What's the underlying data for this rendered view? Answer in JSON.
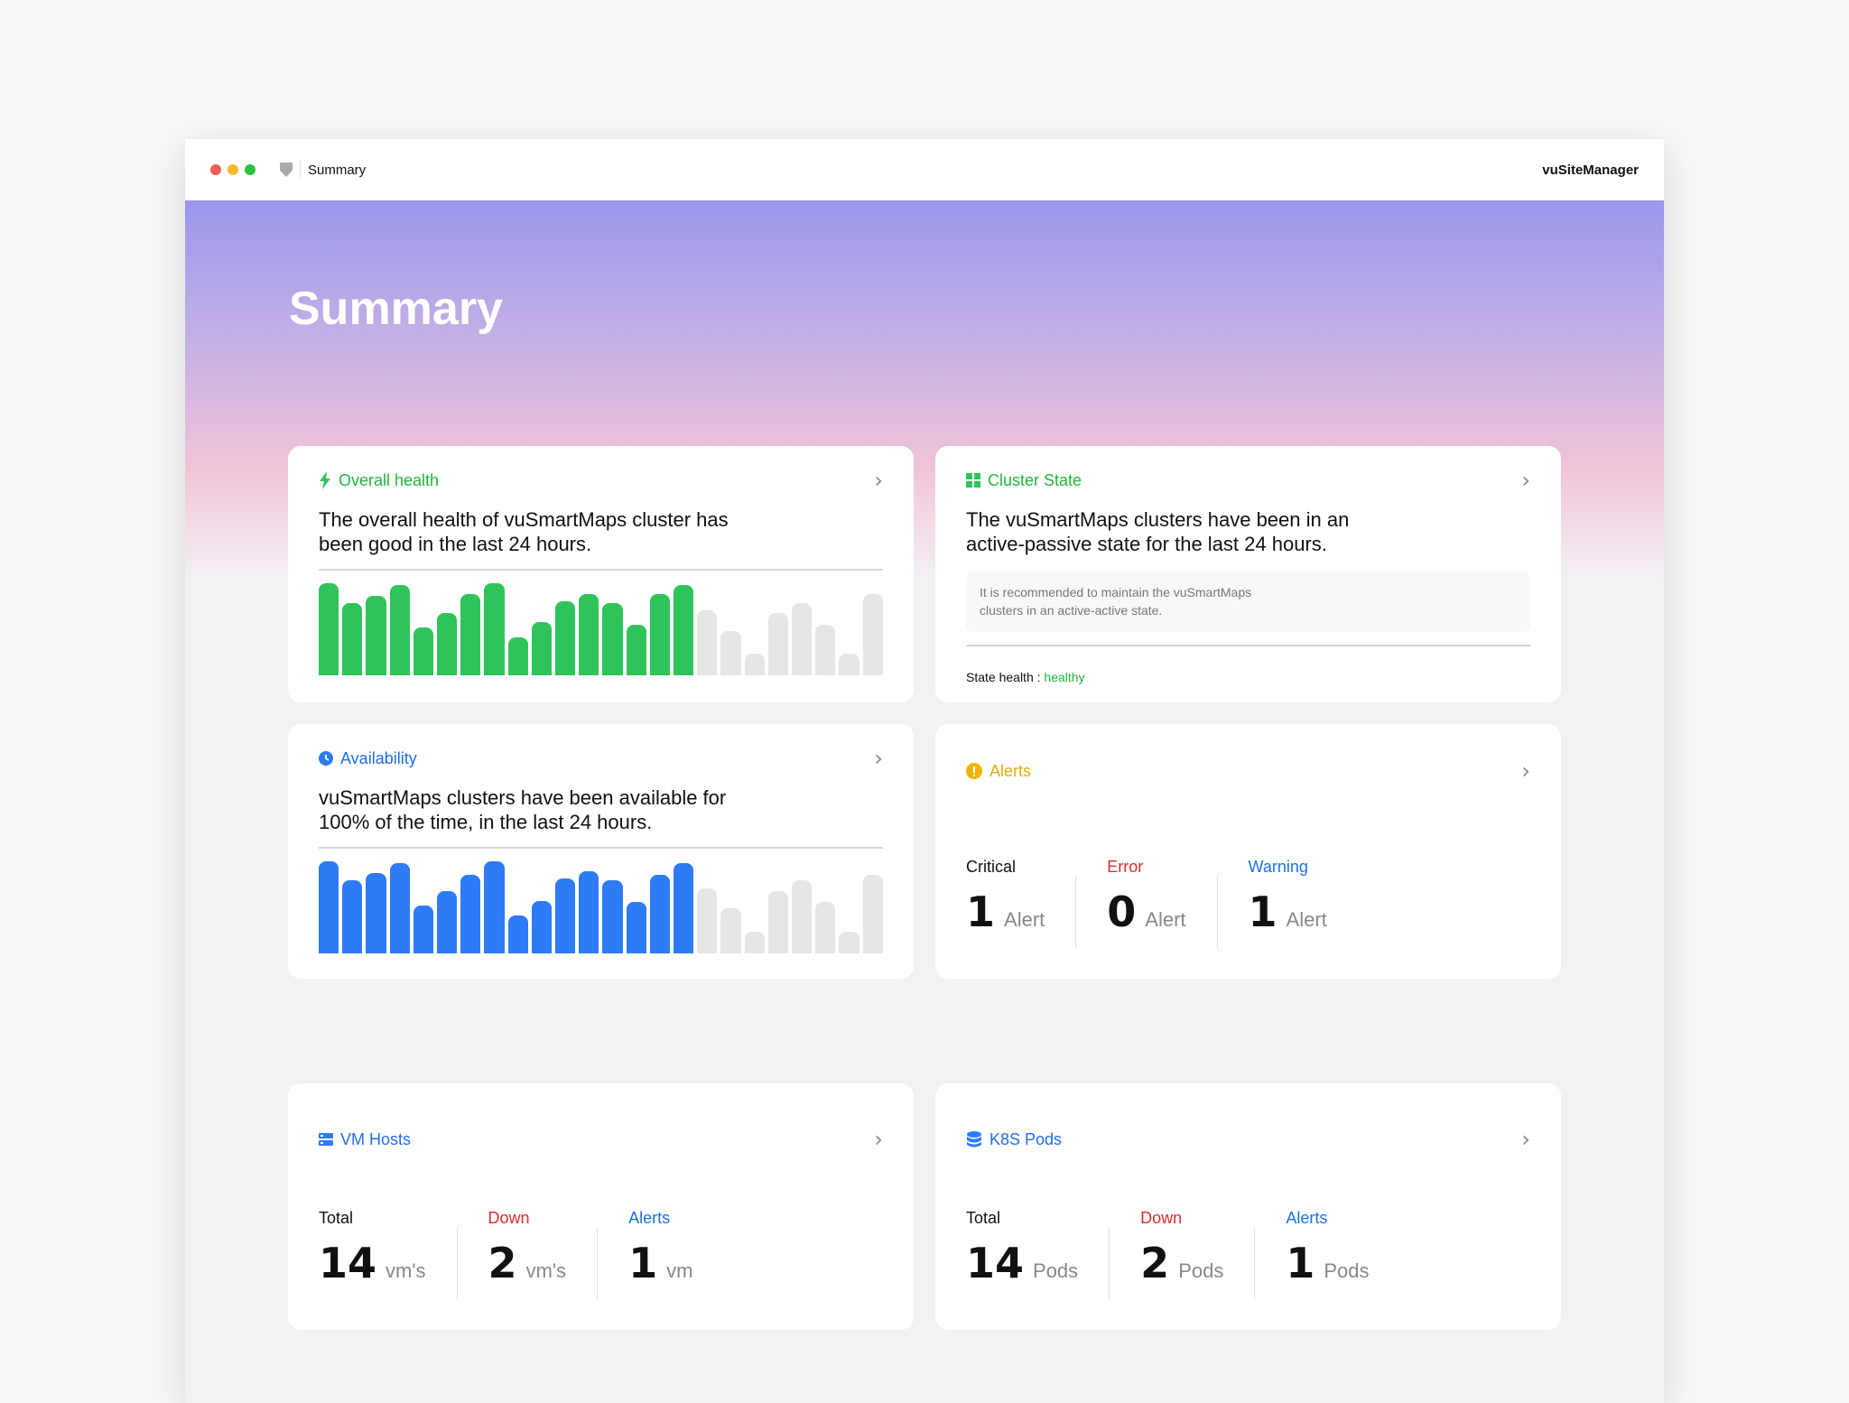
{
  "window": {
    "tab_title": "Summary",
    "app_name": "vuSiteManager",
    "traffic_lights": [
      "#f25a55",
      "#f6b92e",
      "#2ac23f"
    ]
  },
  "page": {
    "title": "Summary"
  },
  "colors": {
    "green": "#2fc45a",
    "blue": "#2d7bf6",
    "gray_bar": "#e6e6e6",
    "yellow": "#e8b400",
    "red": "#e02b2b",
    "link_blue": "#1a73e8"
  },
  "overall_health": {
    "title": "Overall health",
    "icon": "lightning-icon",
    "text": "The overall health of vuSmartMaps cluster has been good in the last 24 hours."
  },
  "cluster_state": {
    "title": "Cluster State",
    "icon": "grid-icon",
    "text": "The vuSmartMaps clusters have been in an active-passive state for the last 24 hours.",
    "note": "It is recommended to maintain the vuSmartMaps clusters in an active-active state.",
    "state_label": "State health :",
    "state_value": "healthy"
  },
  "availability": {
    "title": "Availability",
    "icon": "clock-icon",
    "text": "vuSmartMaps clusters have been available for 100% of the time, in the last 24 hours."
  },
  "alerts": {
    "title": "Alerts",
    "icon": "exclamation-icon",
    "items": [
      {
        "label": "Critical",
        "value": "1",
        "unit": "Alert",
        "color": "#111111"
      },
      {
        "label": "Error",
        "value": "0",
        "unit": "Alert",
        "color": "#e02b2b"
      },
      {
        "label": "Warning",
        "value": "1",
        "unit": "Alert",
        "color": "#1a73e8"
      }
    ]
  },
  "vm_hosts": {
    "title": "VM Hosts",
    "icon": "server-icon",
    "items": [
      {
        "label": "Total",
        "value": "14",
        "unit": "vm's",
        "color": "#111111"
      },
      {
        "label": "Down",
        "value": "2",
        "unit": "vm's",
        "color": "#e02b2b"
      },
      {
        "label": "Alerts",
        "value": "1",
        "unit": "vm",
        "color": "#1a73e8"
      }
    ]
  },
  "k8s_pods": {
    "title": "K8S Pods",
    "icon": "database-icon",
    "items": [
      {
        "label": "Total",
        "value": "14",
        "unit": "Pods",
        "color": "#111111"
      },
      {
        "label": "Down",
        "value": "2",
        "unit": "Pods",
        "color": "#e02b2b"
      },
      {
        "label": "Alerts",
        "value": "1",
        "unit": "Pods",
        "color": "#1a73e8"
      }
    ]
  },
  "chart_data": [
    {
      "type": "bar",
      "name_hint": "overall-health-chart",
      "values": [
        100,
        78,
        86,
        98,
        52,
        68,
        88,
        100,
        41,
        58,
        80,
        88,
        78,
        55,
        88,
        98,
        71,
        48,
        24,
        68,
        78,
        55,
        24,
        88
      ],
      "active_count": 16,
      "ylim": [
        0,
        100
      ]
    },
    {
      "type": "bar",
      "name_hint": "availability-chart",
      "values": [
        100,
        79,
        87,
        98,
        52,
        68,
        85,
        100,
        41,
        57,
        81,
        89,
        79,
        56,
        85,
        98,
        71,
        49,
        24,
        68,
        79,
        56,
        24,
        85
      ],
      "active_count": 16,
      "ylim": [
        0,
        100
      ]
    }
  ]
}
